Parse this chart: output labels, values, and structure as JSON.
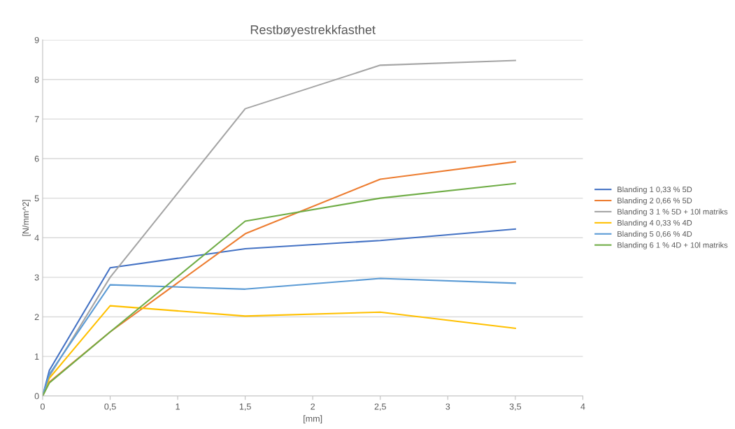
{
  "chart_data": {
    "type": "line",
    "title": "Restbøyestrekkfasthet",
    "xlabel": "[mm]",
    "ylabel": "[N/mm^2]",
    "x": [
      0,
      0.05,
      0.5,
      1.5,
      2.5,
      3.5
    ],
    "series": [
      {
        "name": "Blanding 1 0,33 % 5D",
        "color": "#4472c4",
        "values": [
          0,
          0.65,
          3.24,
          3.72,
          3.93,
          4.22
        ]
      },
      {
        "name": "Blanding 2 0,66 % 5D",
        "color": "#ed7d31",
        "values": [
          0,
          0.35,
          1.62,
          4.1,
          5.48,
          5.92
        ]
      },
      {
        "name": "Blanding 3 1 % 5D + 10l matriks",
        "color": "#a5a5a5",
        "values": [
          0,
          0.5,
          3.0,
          7.26,
          8.36,
          8.48
        ]
      },
      {
        "name": "Blanding 4 0,33 % 4D",
        "color": "#ffc000",
        "values": [
          0,
          0.45,
          2.28,
          2.02,
          2.12,
          1.71
        ]
      },
      {
        "name": "Blanding 5 0,66 % 4D",
        "color": "#5b9bd5",
        "values": [
          0,
          0.55,
          2.81,
          2.7,
          2.97,
          2.85
        ]
      },
      {
        "name": "Blanding 6 1 % 4D + 10l matriks",
        "color": "#70ad47",
        "values": [
          0,
          0.33,
          1.62,
          4.42,
          5.0,
          5.37
        ]
      }
    ],
    "xlim": [
      0,
      4
    ],
    "ylim": [
      0,
      9
    ],
    "xticks": [
      0,
      {
        "value": 0.5,
        "label": "0,5"
      },
      1,
      {
        "value": 1.5,
        "label": "1,5"
      },
      2,
      {
        "value": 2.5,
        "label": "2,5"
      },
      3,
      {
        "value": 3.5,
        "label": "3,5"
      },
      4
    ],
    "yticks": [
      0,
      1,
      2,
      3,
      4,
      5,
      6,
      7,
      8,
      9
    ],
    "grid": "y",
    "legend": "right",
    "marker": "none",
    "line_style": "solid"
  }
}
